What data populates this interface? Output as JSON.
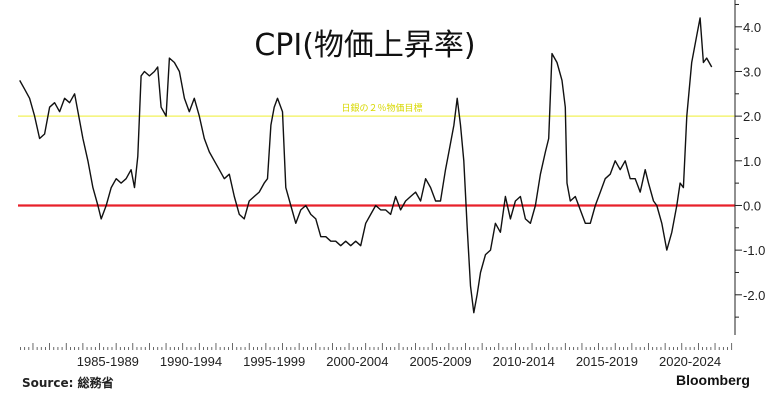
{
  "chart_data": {
    "type": "line",
    "title": "CPI(物価上昇率)",
    "xlabel": "",
    "ylabel": "",
    "x_tick_labels": [
      "1985-1989",
      "1990-1994",
      "1995-1999",
      "2000-2004",
      "2005-2009",
      "2010-2014",
      "2015-2019",
      "2020-2024"
    ],
    "y_ticks": [
      4.0,
      3.0,
      2.0,
      1.0,
      0.0,
      -1.0,
      -2.0
    ],
    "y_tick_labels": [
      "4.0",
      "3.0",
      "2.0",
      "1.0",
      "0.0",
      "-1.0",
      "-2.0"
    ],
    "xlim": [
      1982.1,
      2025.2
    ],
    "ylim": [
      -2.9,
      4.6
    ],
    "y_axis_position": "right",
    "grid": false,
    "reference_lines": [
      {
        "value": 2.0,
        "label": "日銀の２％物価目標",
        "color": "#f2f25a"
      },
      {
        "value": 0.0,
        "label": "",
        "color": "#e8202a"
      }
    ],
    "series": [
      {
        "color": "#111111",
        "points": [
          [
            1982.2,
            2.8
          ],
          [
            1982.5,
            2.6
          ],
          [
            1982.8,
            2.4
          ],
          [
            1983.1,
            2.0
          ],
          [
            1983.4,
            1.5
          ],
          [
            1983.7,
            1.6
          ],
          [
            1984.0,
            2.2
          ],
          [
            1984.3,
            2.3
          ],
          [
            1984.6,
            2.1
          ],
          [
            1984.9,
            2.4
          ],
          [
            1985.2,
            2.3
          ],
          [
            1985.5,
            2.5
          ],
          [
            1985.8,
            1.9
          ],
          [
            1986.0,
            1.5
          ],
          [
            1986.3,
            1.0
          ],
          [
            1986.6,
            0.4
          ],
          [
            1986.9,
            0.0
          ],
          [
            1987.1,
            -0.3
          ],
          [
            1987.4,
            0.0
          ],
          [
            1987.7,
            0.4
          ],
          [
            1988.0,
            0.6
          ],
          [
            1988.3,
            0.5
          ],
          [
            1988.6,
            0.6
          ],
          [
            1988.9,
            0.8
          ],
          [
            1989.1,
            0.4
          ],
          [
            1989.3,
            1.1
          ],
          [
            1989.5,
            2.9
          ],
          [
            1989.7,
            3.0
          ],
          [
            1990.0,
            2.9
          ],
          [
            1990.3,
            3.0
          ],
          [
            1990.5,
            3.1
          ],
          [
            1990.7,
            2.2
          ],
          [
            1991.0,
            2.0
          ],
          [
            1991.2,
            3.3
          ],
          [
            1991.5,
            3.2
          ],
          [
            1991.8,
            3.0
          ],
          [
            1992.1,
            2.4
          ],
          [
            1992.4,
            2.1
          ],
          [
            1992.7,
            2.4
          ],
          [
            1993.0,
            2.0
          ],
          [
            1993.3,
            1.5
          ],
          [
            1993.6,
            1.2
          ],
          [
            1993.9,
            1.0
          ],
          [
            1994.2,
            0.8
          ],
          [
            1994.5,
            0.6
          ],
          [
            1994.8,
            0.7
          ],
          [
            1995.1,
            0.2
          ],
          [
            1995.4,
            -0.2
          ],
          [
            1995.7,
            -0.3
          ],
          [
            1996.0,
            0.1
          ],
          [
            1996.3,
            0.2
          ],
          [
            1996.6,
            0.3
          ],
          [
            1996.9,
            0.5
          ],
          [
            1997.1,
            0.6
          ],
          [
            1997.3,
            1.8
          ],
          [
            1997.5,
            2.2
          ],
          [
            1997.7,
            2.4
          ],
          [
            1998.0,
            2.1
          ],
          [
            1998.2,
            0.4
          ],
          [
            1998.5,
            0.0
          ],
          [
            1998.8,
            -0.4
          ],
          [
            1999.1,
            -0.1
          ],
          [
            1999.4,
            0.0
          ],
          [
            1999.7,
            -0.2
          ],
          [
            2000.0,
            -0.3
          ],
          [
            2000.3,
            -0.7
          ],
          [
            2000.6,
            -0.7
          ],
          [
            2000.9,
            -0.8
          ],
          [
            2001.2,
            -0.8
          ],
          [
            2001.5,
            -0.9
          ],
          [
            2001.8,
            -0.8
          ],
          [
            2002.1,
            -0.9
          ],
          [
            2002.4,
            -0.8
          ],
          [
            2002.7,
            -0.9
          ],
          [
            2003.0,
            -0.4
          ],
          [
            2003.3,
            -0.2
          ],
          [
            2003.6,
            0.0
          ],
          [
            2003.9,
            -0.1
          ],
          [
            2004.2,
            -0.1
          ],
          [
            2004.5,
            -0.2
          ],
          [
            2004.8,
            0.2
          ],
          [
            2005.1,
            -0.1
          ],
          [
            2005.4,
            0.1
          ],
          [
            2005.7,
            0.2
          ],
          [
            2006.0,
            0.3
          ],
          [
            2006.3,
            0.1
          ],
          [
            2006.6,
            0.6
          ],
          [
            2006.9,
            0.4
          ],
          [
            2007.2,
            0.1
          ],
          [
            2007.5,
            0.1
          ],
          [
            2007.8,
            0.8
          ],
          [
            2008.0,
            1.2
          ],
          [
            2008.3,
            1.8
          ],
          [
            2008.5,
            2.4
          ],
          [
            2008.7,
            1.8
          ],
          [
            2008.9,
            1.0
          ],
          [
            2009.1,
            -0.5
          ],
          [
            2009.3,
            -1.8
          ],
          [
            2009.5,
            -2.4
          ],
          [
            2009.7,
            -2.0
          ],
          [
            2009.9,
            -1.5
          ],
          [
            2010.2,
            -1.1
          ],
          [
            2010.5,
            -1.0
          ],
          [
            2010.8,
            -0.4
          ],
          [
            2011.1,
            -0.6
          ],
          [
            2011.4,
            0.2
          ],
          [
            2011.7,
            -0.3
          ],
          [
            2012.0,
            0.1
          ],
          [
            2012.3,
            0.2
          ],
          [
            2012.6,
            -0.3
          ],
          [
            2012.9,
            -0.4
          ],
          [
            2013.2,
            0.0
          ],
          [
            2013.5,
            0.7
          ],
          [
            2013.8,
            1.2
          ],
          [
            2014.0,
            1.5
          ],
          [
            2014.2,
            3.4
          ],
          [
            2014.5,
            3.2
          ],
          [
            2014.8,
            2.8
          ],
          [
            2015.0,
            2.2
          ],
          [
            2015.1,
            0.5
          ],
          [
            2015.3,
            0.1
          ],
          [
            2015.6,
            0.2
          ],
          [
            2015.9,
            -0.1
          ],
          [
            2016.2,
            -0.4
          ],
          [
            2016.5,
            -0.4
          ],
          [
            2016.8,
            0.0
          ],
          [
            2017.1,
            0.3
          ],
          [
            2017.4,
            0.6
          ],
          [
            2017.7,
            0.7
          ],
          [
            2018.0,
            1.0
          ],
          [
            2018.3,
            0.8
          ],
          [
            2018.6,
            1.0
          ],
          [
            2018.9,
            0.6
          ],
          [
            2019.2,
            0.6
          ],
          [
            2019.5,
            0.3
          ],
          [
            2019.8,
            0.8
          ],
          [
            2020.0,
            0.5
          ],
          [
            2020.3,
            0.1
          ],
          [
            2020.5,
            0.0
          ],
          [
            2020.8,
            -0.4
          ],
          [
            2021.1,
            -1.0
          ],
          [
            2021.4,
            -0.6
          ],
          [
            2021.7,
            0.0
          ],
          [
            2021.9,
            0.5
          ],
          [
            2022.1,
            0.4
          ],
          [
            2022.3,
            2.0
          ],
          [
            2022.6,
            3.2
          ],
          [
            2022.9,
            3.8
          ],
          [
            2023.1,
            4.2
          ],
          [
            2023.3,
            3.2
          ],
          [
            2023.5,
            3.3
          ],
          [
            2023.8,
            3.1
          ]
        ]
      }
    ],
    "source": "Source: 総務省",
    "brand": "Bloomberg"
  }
}
